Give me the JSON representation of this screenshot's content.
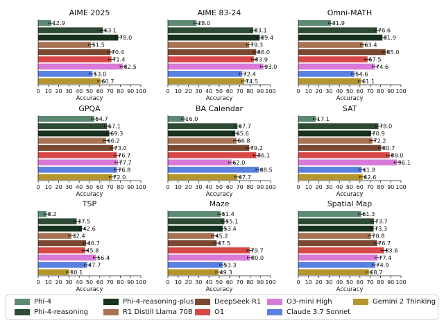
{
  "series": [
    {
      "name": "Phi-4",
      "color": "#5c8a73"
    },
    {
      "name": "Phi-4-reasoning",
      "color": "#2d4a35"
    },
    {
      "name": "Phi-4-reasoning-plus",
      "color": "#17321f"
    },
    {
      "name": "R1 Distill Llama 70B",
      "color": "#a87355"
    },
    {
      "name": "DeepSeek R1",
      "color": "#7a4730"
    },
    {
      "name": "O1",
      "color": "#d84848"
    },
    {
      "name": "O3-mini High",
      "color": "#da7ad8"
    },
    {
      "name": "Claude 3.7 Sonnet",
      "color": "#5a80e0"
    },
    {
      "name": "Gemini 2 Thinking",
      "color": "#b5962e"
    }
  ],
  "chart_data": [
    {
      "type": "bar",
      "title": "AIME 2025",
      "xlabel": "Accuracy",
      "xlim": [
        0,
        100
      ],
      "ticks": [
        "0",
        "10",
        "20",
        "30",
        "40",
        "50",
        "60",
        "70",
        "80",
        "90",
        "100"
      ],
      "values": [
        12.9,
        63.1,
        78.0,
        51.5,
        70.4,
        71.4,
        82.5,
        53.0,
        60.7
      ],
      "labels": [
        "12.9",
        "63.1",
        "78.0",
        "51.5",
        "70.4",
        "71.4",
        "82.5",
        "53.0",
        "60.7"
      ]
    },
    {
      "type": "bar",
      "title": "AIME 83-24",
      "xlabel": "Accuracy",
      "xlim": [
        0,
        100
      ],
      "ticks": [
        "0",
        "10",
        "20",
        "30",
        "40",
        "50",
        "60",
        "70",
        "80",
        "90",
        "100"
      ],
      "values": [
        28.0,
        83.1,
        89.4,
        79.3,
        86.0,
        83.9,
        93.0,
        72.4,
        74.5
      ],
      "labels": [
        "28.0",
        "83.1",
        "89.4",
        "79.3",
        "86.0",
        "83.9",
        "93.0",
        "72.4",
        "74.5"
      ]
    },
    {
      "type": "bar",
      "title": "Omni-MATH",
      "xlabel": "Accuracy",
      "xlim": [
        0,
        100
      ],
      "ticks": [
        "0",
        "10",
        "20",
        "30",
        "40",
        "50",
        "60",
        "70",
        "80",
        "90",
        "100"
      ],
      "values": [
        31.9,
        76.6,
        81.9,
        63.4,
        85.0,
        67.5,
        74.6,
        54.6,
        61.1
      ],
      "labels": [
        "31.9",
        "76.6",
        "81.9",
        "63.4",
        "85.0",
        "67.5",
        "74.6",
        "54.6",
        "61.1"
      ]
    },
    {
      "type": "bar",
      "title": "GPQA",
      "xlabel": "Accuracy",
      "xlim": [
        0,
        100
      ],
      "ticks": [
        "0",
        "10",
        "20",
        "30",
        "40",
        "50",
        "60",
        "70",
        "80",
        "90",
        "100"
      ],
      "values": [
        54.7,
        67.1,
        69.3,
        66.2,
        73.0,
        76.7,
        77.7,
        76.8,
        72.0
      ],
      "labels": [
        "54.7",
        "67.1",
        "69.3",
        "66.2",
        "73.0",
        "76.7",
        "77.7",
        "76.8",
        "72.0"
      ]
    },
    {
      "type": "bar",
      "title": "BA Calendar",
      "xlabel": "Accuracy",
      "xlim": [
        0,
        100
      ],
      "ticks": [
        "0",
        "10",
        "20",
        "30",
        "40",
        "50",
        "60",
        "70",
        "80",
        "90",
        "100"
      ],
      "values": [
        16.0,
        67.7,
        65.6,
        66.8,
        79.2,
        86.1,
        62.0,
        88.5,
        67.7
      ],
      "labels": [
        "16.0",
        "67.7",
        "65.6",
        "66.8",
        "79.2",
        "86.1",
        "62.0",
        "88.5",
        "67.7"
      ]
    },
    {
      "type": "bar",
      "title": "SAT",
      "xlabel": "Accuracy",
      "xlim": [
        0,
        100
      ],
      "ticks": [
        "0",
        "10",
        "20",
        "30",
        "40",
        "50",
        "60",
        "70",
        "80",
        "90",
        "100"
      ],
      "values": [
        17.1,
        78.0,
        70.9,
        72.2,
        80.7,
        89.0,
        96.1,
        61.8,
        62.6
      ],
      "labels": [
        "17.1",
        "78.0",
        "70.9",
        "72.2",
        "80.7",
        "89.0",
        "96.1",
        "61.8",
        "62.6"
      ]
    },
    {
      "type": "bar",
      "title": "TSP",
      "xlabel": "Accuracy",
      "xlim": [
        0,
        100
      ],
      "ticks": [
        "0",
        "10",
        "20",
        "30",
        "40",
        "50",
        "60",
        "70",
        "80",
        "90",
        "100"
      ],
      "values": [
        8.2,
        37.5,
        42.6,
        32.4,
        46.7,
        45.8,
        56.4,
        47.7,
        30.1
      ],
      "labels": [
        "8.2",
        "37.5",
        "42.6",
        "32.4",
        "46.7",
        "45.8",
        "56.4",
        "47.7",
        "30.1"
      ]
    },
    {
      "type": "bar",
      "title": "Maze",
      "xlabel": "Accuracy",
      "xlim": [
        0,
        100
      ],
      "ticks": [
        "0",
        "10",
        "20",
        "30",
        "40",
        "50",
        "60",
        "70",
        "80",
        "90",
        "100"
      ],
      "values": [
        51.4,
        55.1,
        53.4,
        45.2,
        47.5,
        79.7,
        80.0,
        53.3,
        49.3
      ],
      "labels": [
        "51.4",
        "55.1",
        "53.4",
        "45.2",
        "47.5",
        "79.7",
        "80.0",
        "53.3",
        "49.3"
      ]
    },
    {
      "type": "bar",
      "title": "Spatial Map",
      "xlabel": "Accuracy",
      "xlim": [
        0,
        100
      ],
      "ticks": [
        "0",
        "10",
        "20",
        "30",
        "40",
        "50",
        "60",
        "70",
        "80",
        "90",
        "100"
      ],
      "values": [
        61.3,
        73.7,
        73.3,
        70.8,
        76.7,
        83.6,
        77.4,
        74.9,
        68.7
      ],
      "labels": [
        "61.3",
        "73.7",
        "73.3",
        "70.8",
        "76.7",
        "83.6",
        "77.4",
        "74.9",
        "68.7"
      ]
    }
  ],
  "legend": {
    "items": [
      {
        "label": "Phi-4",
        "color": "#5c8a73"
      },
      {
        "label": "Phi-4-reasoning-plus",
        "color": "#17321f"
      },
      {
        "label": "DeepSeek R1",
        "color": "#7a4730"
      },
      {
        "label": "O3-mini High",
        "color": "#da7ad8"
      },
      {
        "label": "Gemini 2 Thinking",
        "color": "#b5962e"
      },
      {
        "label": "Phi-4-reasoning",
        "color": "#2d4a35"
      },
      {
        "label": "R1 Distill Llama 70B",
        "color": "#a87355"
      },
      {
        "label": "O1",
        "color": "#d84848"
      },
      {
        "label": "Claude 3.7 Sonnet",
        "color": "#5a80e0"
      }
    ]
  }
}
